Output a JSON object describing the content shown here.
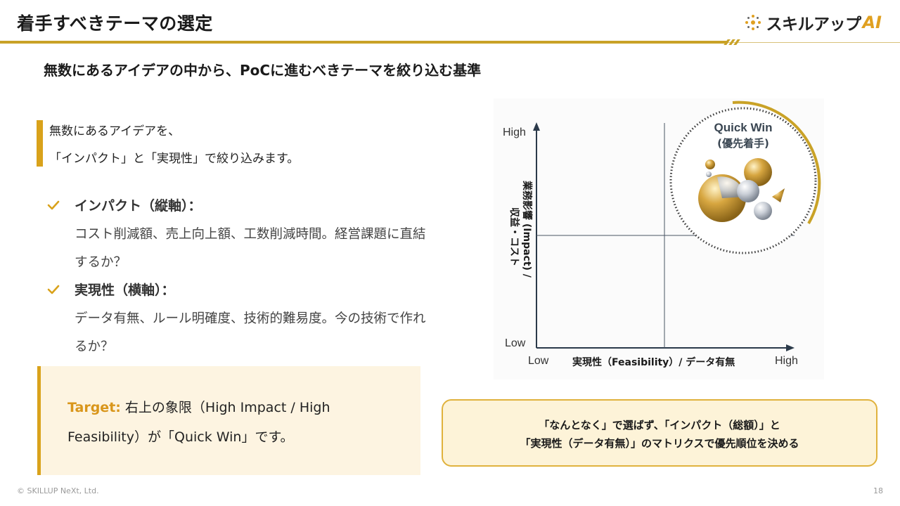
{
  "header": {
    "title": "着手すべきテーマの選定",
    "brand_text": "スキルアップ",
    "brand_ai": "AI"
  },
  "subtitle": "無数にあるアイデアの中から、PoCに進むべきテーマを絞り込む基準",
  "intro": {
    "line1": "無数にあるアイデアを、",
    "line2": "「インパクト」と「実現性」で絞り込みます。"
  },
  "criteria": [
    {
      "title": "インパクト（縦軸）：",
      "desc": " コスト削減額、売上向上額、工数削減時間。経営課題に直結するか？"
    },
    {
      "title": "実現性（横軸）：",
      "desc": " データ有無、ルール明確度、技術的難易度。今の技術で作れるか？"
    }
  ],
  "target": {
    "label": "Target:",
    "text": " 右上の象限（High Impact / High Feasibility）が「Quick Win」です。"
  },
  "matrix": {
    "y_high": "High",
    "y_low": "Low",
    "x_low": "Low",
    "x_high": "High",
    "y_axis_label": "業務影響 (Impact) / 収益・コスト",
    "y_axis_col1": "業務影響 (Impact) /",
    "y_axis_col2": "収益・コスト",
    "x_axis_label": "実現性（Feasibility）/ データ有無",
    "quick_win_line1": "Quick Win",
    "quick_win_line2": "(優先着手)"
  },
  "callout": {
    "line1": "「なんとなく」で選ばず、「インパクト（総額）」と",
    "line2": "「実現性（データ有無）」のマトリクスで優先順位を決める"
  },
  "footer": {
    "copyright": "© SKILLUP NeXt, Ltd.",
    "page": "18"
  },
  "colors": {
    "accent_gold": "#d9a21b",
    "callout_bg": "#fdf3d8",
    "target_bg": "#fdf4e1"
  }
}
